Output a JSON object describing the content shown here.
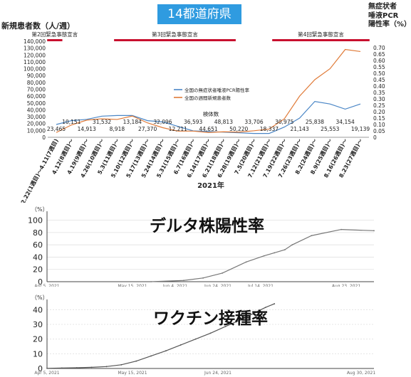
{
  "header": {
    "badge": "14都道府県"
  },
  "chart_data": [
    {
      "type": "line",
      "title": "14都道府県",
      "ylabel_left": "新規患者数（人/週）",
      "ylabel_right": [
        "無症状者",
        "唾液PCR",
        "陽性率（%）"
      ],
      "xlabel": "2021年",
      "categories": [
        "2.22(1週目)～4.11(7週目)",
        "4.12(8週目)～",
        "4.19(9週目)～",
        "4.26(10週目)～",
        "5.3(11週目)～",
        "5.10(12週目)～",
        "5.17(13週目)～",
        "5.24(14週目)～",
        "5.31(15週目)～",
        "6.7(16週目)～",
        "6.14(17週目)～",
        "6.21(18週目)～",
        "6.28(19週目)～",
        "7.5(20週目)～",
        "7.12(21週目)～",
        "7.19(22週目)～",
        "7.26(23週目)～",
        "8.2(24週目)～",
        "8.9(25週目)～",
        "8.16(26週目)～",
        "8.23(27週目)～"
      ],
      "ylim_left": [
        0,
        140000
      ],
      "yticks_left": [
        "0",
        "10,000",
        "20,000",
        "30,000",
        "40,000",
        "50,000",
        "60,000",
        "70,000",
        "80,000",
        "90,000",
        "100,000",
        "110,000",
        "120,000",
        "130,000",
        "140,000"
      ],
      "ylim_right": [
        0,
        0.75
      ],
      "yticks_right": [
        "0",
        "0.05",
        "0.10",
        "0.15",
        "0.20",
        "0.25",
        "0.30",
        "0.35",
        "0.40",
        "0.45",
        "0.50",
        "0.55",
        "0.60",
        "0.65",
        "0.70"
      ],
      "series": [
        {
          "name": "全国の無症状者唾液PCR陽性率",
          "color": "#4a86c6",
          "axis": "right",
          "values": [
            0.1,
            0.13,
            0.14,
            0.165,
            0.17,
            0.17,
            0.13,
            0.12,
            0.085,
            0.05,
            0.045,
            0.04,
            0.035,
            0.03,
            0.03,
            0.08,
            0.15,
            0.28,
            0.26,
            0.22,
            0.26
          ]
        },
        {
          "name": "全国の週間新規患者数",
          "color": "#e07b39",
          "axis": "left",
          "values": [
            7000,
            18000,
            25000,
            27000,
            26000,
            31000,
            21000,
            14000,
            9000,
            9000,
            7000,
            8000,
            7500,
            9500,
            12000,
            27000,
            60000,
            84000,
            100000,
            128000,
            125000
          ]
        }
      ],
      "testcount_label": "検体数",
      "testcounts_upper": [
        {
          "i": 1,
          "text": "10,151"
        },
        {
          "i": 3,
          "text": "31,532"
        },
        {
          "i": 5,
          "text": "13,184"
        },
        {
          "i": 7,
          "text": "32,096"
        },
        {
          "i": 9,
          "text": "36,593"
        },
        {
          "i": 11,
          "text": "48,813"
        },
        {
          "i": 13,
          "text": "33,706"
        },
        {
          "i": 15,
          "text": "30,975"
        },
        {
          "i": 17,
          "text": "25,838"
        },
        {
          "i": 19,
          "text": "34,154"
        }
      ],
      "testcounts_lower": [
        {
          "i": 0,
          "text": "23,465"
        },
        {
          "i": 2,
          "text": "14,913"
        },
        {
          "i": 4,
          "text": "8,918"
        },
        {
          "i": 6,
          "text": "27,370"
        },
        {
          "i": 8,
          "text": "12,211"
        },
        {
          "i": 10,
          "text": "44,651"
        },
        {
          "i": 12,
          "text": "50,220"
        },
        {
          "i": 14,
          "text": "18,337"
        },
        {
          "i": 16,
          "text": "21,143"
        },
        {
          "i": 18,
          "text": "25,553"
        },
        {
          "i": 20,
          "text": "19,139"
        }
      ],
      "emergency_periods": [
        {
          "label": "第2回緊急事態宣言",
          "from": -0.6,
          "to": 0.4
        },
        {
          "label": "第3回緊急事態宣言",
          "from": 3.8,
          "to": 11.8
        },
        {
          "label": "第4回緊急事態宣言",
          "from": 14.2,
          "to": 20.6
        }
      ]
    },
    {
      "type": "line",
      "title": "デルタ株陽性率",
      "ylabel": "（%）",
      "ylim": [
        0,
        110
      ],
      "yticks": [
        0,
        20,
        40,
        60,
        80,
        100
      ],
      "xticks": [
        "Apr 5, 2021",
        "May 15, 2021",
        "Jun 4, 2021",
        "Jun 24, 2021",
        "Jul 14, 2021",
        "Aug 23, 2021"
      ],
      "xtick_days": [
        0,
        40,
        60,
        80,
        100,
        140
      ],
      "xlim_days": [
        0,
        153
      ],
      "series": [
        {
          "name": "",
          "color": "#777777",
          "points": [
            [
              70,
              0
            ],
            [
              92,
              2
            ],
            [
              105,
              6
            ],
            [
              118,
              14
            ],
            [
              134,
              32
            ],
            [
              146,
              42
            ],
            [
              153,
              47
            ],
            [
              160,
              52
            ],
            [
              165,
              60
            ],
            [
              178,
              75
            ],
            [
              198,
              85
            ],
            [
              220,
              83
            ]
          ]
        }
      ]
    },
    {
      "type": "line",
      "title": "ワクチン接種率",
      "ylabel": "（%）",
      "ylim": [
        0,
        45
      ],
      "yticks": [
        0,
        10,
        20,
        30,
        40
      ],
      "xticks": [
        "Apr 5, 2021",
        "May 15, 2021",
        "Jun 24, 2021",
        "Aug 30, 2021"
      ],
      "xtick_days": [
        0,
        40,
        80,
        147
      ],
      "xlim_days": [
        0,
        153
      ],
      "series": [
        {
          "name": "",
          "color": "#555555",
          "points": [
            [
              0,
              0.1
            ],
            [
              10,
              0.3
            ],
            [
              20,
              0.5
            ],
            [
              30,
              0.8
            ],
            [
              40,
              1.3
            ],
            [
              50,
              2.5
            ],
            [
              60,
              5
            ],
            [
              70,
              8.5
            ],
            [
              80,
              12
            ],
            [
              90,
              16
            ],
            [
              100,
              20
            ],
            [
              110,
              24
            ],
            [
              120,
              28.5
            ],
            [
              130,
              33
            ],
            [
              140,
              38
            ],
            [
              147,
              41.5
            ],
            [
              153,
              44
            ]
          ]
        }
      ]
    }
  ]
}
